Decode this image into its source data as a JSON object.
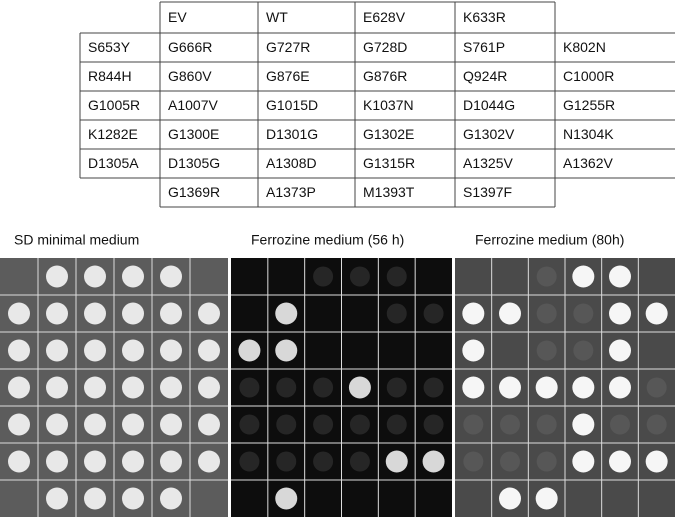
{
  "table": {
    "header": [
      "EV",
      "WT",
      "E628V",
      "K633R"
    ],
    "rows": [
      [
        "S653Y",
        "G666R",
        "G727R",
        "G728D",
        "S761P",
        "K802N"
      ],
      [
        "R844H",
        "G860V",
        "G876E",
        "G876R",
        "Q924R",
        "C1000R"
      ],
      [
        "G1005R",
        "A1007V",
        "G1015D",
        "K1037N",
        "D1044G",
        "G1255R"
      ],
      [
        "K1282E",
        "G1300E",
        "D1301G",
        "G1302E",
        "G1302V",
        "N1304K"
      ],
      [
        "D1305A",
        "D1305G",
        "A1308D",
        "G1315R",
        "A1325V",
        "A1362V"
      ]
    ],
    "last_row": [
      "G1369R",
      "A1373P",
      "M1393T",
      "S1397F"
    ]
  },
  "panels": [
    {
      "title": "SD minimal medium"
    },
    {
      "title": "Ferrozine medium (56 h)"
    },
    {
      "title": "Ferrozine medium (80h)"
    }
  ]
}
